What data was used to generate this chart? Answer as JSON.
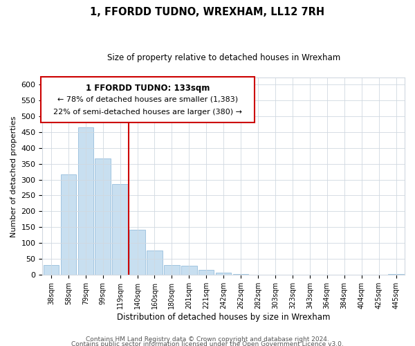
{
  "title": "1, FFORDD TUDNO, WREXHAM, LL12 7RH",
  "subtitle": "Size of property relative to detached houses in Wrexham",
  "xlabel": "Distribution of detached houses by size in Wrexham",
  "ylabel": "Number of detached properties",
  "bar_labels": [
    "38sqm",
    "58sqm",
    "79sqm",
    "99sqm",
    "119sqm",
    "140sqm",
    "160sqm",
    "180sqm",
    "201sqm",
    "221sqm",
    "242sqm",
    "262sqm",
    "282sqm",
    "303sqm",
    "323sqm",
    "343sqm",
    "364sqm",
    "384sqm",
    "404sqm",
    "425sqm",
    "445sqm"
  ],
  "bar_heights": [
    32,
    316,
    465,
    367,
    285,
    142,
    76,
    32,
    30,
    17,
    8,
    2,
    1,
    1,
    0,
    0,
    0,
    0,
    0,
    0,
    2
  ],
  "bar_color": "#c8dff0",
  "bar_edge_color": "#a0c4e0",
  "marker_line_color": "#cc0000",
  "ylim": [
    0,
    620
  ],
  "yticks": [
    0,
    50,
    100,
    150,
    200,
    250,
    300,
    350,
    400,
    450,
    500,
    550,
    600
  ],
  "annotation_title": "1 FFORDD TUDNO: 133sqm",
  "annotation_line1": "← 78% of detached houses are smaller (1,383)",
  "annotation_line2": "22% of semi-detached houses are larger (380) →",
  "footer_line1": "Contains HM Land Registry data © Crown copyright and database right 2024.",
  "footer_line2": "Contains public sector information licensed under the Open Government Licence v3.0.",
  "background_color": "#ffffff",
  "grid_color": "#d0d8e0"
}
